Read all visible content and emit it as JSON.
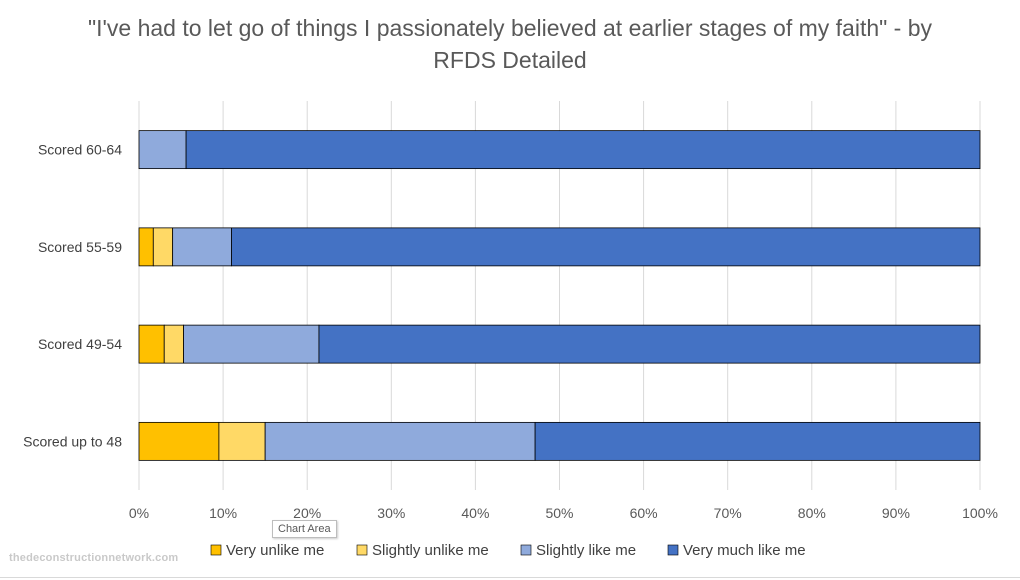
{
  "chart_data": {
    "type": "bar",
    "orientation": "horizontal",
    "stacked": "percent",
    "title": "\"I've had to let go of things I passionately believed at earlier stages of my faith\" - by RFDS Detailed",
    "categories": [
      "Scored 60-64",
      "Scored 55-59",
      "Scored 49-54",
      "Scored up to 48"
    ],
    "series": [
      {
        "name": "Very unlike me",
        "color": "#FFC000",
        "values": [
          0,
          1.7,
          3.0,
          9.5
        ]
      },
      {
        "name": "Slightly unlike me",
        "color": "#FFD966",
        "values": [
          0,
          2.3,
          2.3,
          5.5
        ]
      },
      {
        "name": "Slightly like me",
        "color": "#8FAADC",
        "values": [
          5.6,
          7.0,
          16.1,
          32.1
        ]
      },
      {
        "name": "Very much like me",
        "color": "#4472C4",
        "values": [
          94.4,
          89.0,
          78.6,
          52.9
        ]
      }
    ],
    "x_ticks": [
      "0%",
      "10%",
      "20%",
      "30%",
      "40%",
      "50%",
      "60%",
      "70%",
      "80%",
      "90%",
      "100%"
    ],
    "xlim": [
      0,
      100
    ],
    "grid": true,
    "legend_position": "bottom"
  },
  "tooltip": "Chart Area",
  "watermark": "thedeconstructionnetwork.com"
}
